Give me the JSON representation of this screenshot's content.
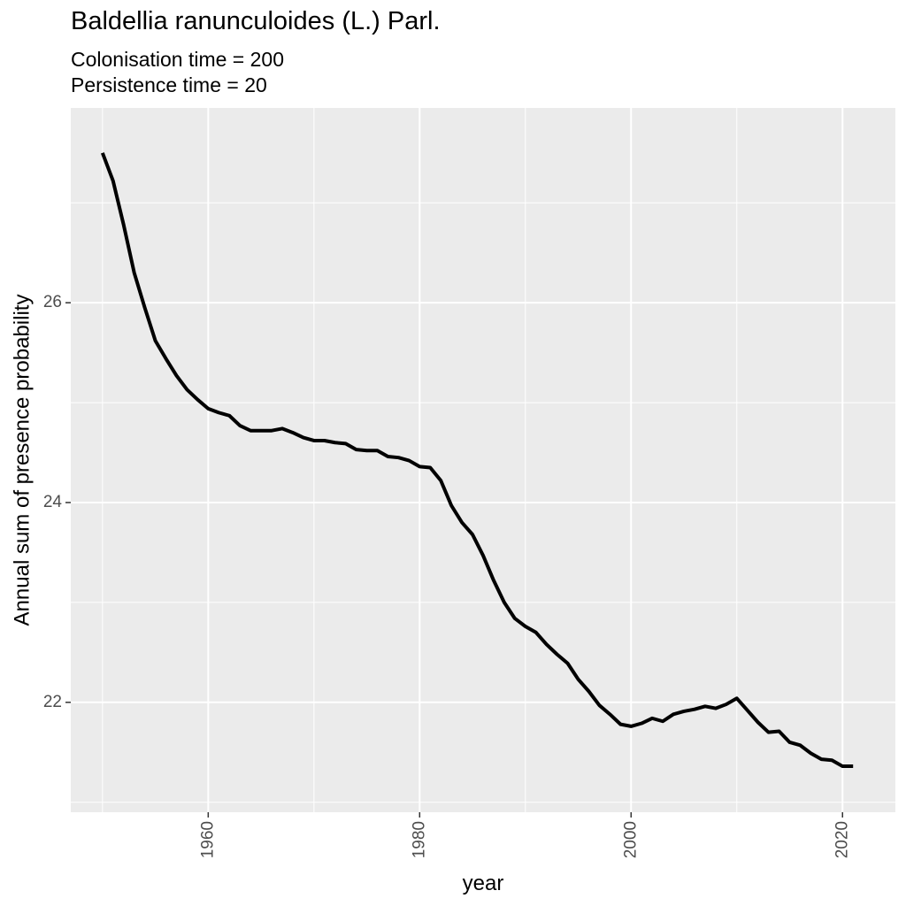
{
  "chart_data": {
    "type": "line",
    "title": "Baldellia ranunculoides (L.) Parl.",
    "subtitle": [
      "Colonisation time = 200",
      "Persistence time = 20"
    ],
    "xlabel": "year",
    "ylabel": "Annual sum of presence probability",
    "xlim": [
      1947,
      2025
    ],
    "ylim": [
      20.9,
      27.95
    ],
    "xticks": [
      1960,
      1980,
      2000,
      2020
    ],
    "yticks": [
      22,
      24,
      26
    ],
    "grid": true,
    "colors": {
      "panel": "#ebebeb",
      "grid": "#ffffff",
      "line": "#000000"
    },
    "series": [
      {
        "x": [
          1950,
          1951,
          1952,
          1953,
          1954,
          1955,
          1956,
          1957,
          1958,
          1959,
          1960,
          1961,
          1962,
          1963,
          1964,
          1965,
          1966,
          1967,
          1968,
          1969,
          1970,
          1971,
          1972,
          1973,
          1974,
          1975,
          1976,
          1977,
          1978,
          1979,
          1980,
          1981,
          1982,
          1983,
          1984,
          1985,
          1986,
          1987,
          1988,
          1989,
          1990,
          1991,
          1992,
          1993,
          1994,
          1995,
          1996,
          1997,
          1998,
          1999,
          2000,
          2001,
          2002,
          2003,
          2004,
          2005,
          2006,
          2007,
          2008,
          2009,
          2010,
          2011,
          2012,
          2013,
          2014,
          2015,
          2016,
          2017,
          2018,
          2019,
          2020,
          2021
        ],
        "y": [
          27.5,
          27.22,
          26.78,
          26.3,
          25.95,
          25.62,
          25.44,
          25.27,
          25.13,
          25.03,
          24.94,
          24.9,
          24.87,
          24.77,
          24.72,
          24.72,
          24.72,
          24.74,
          24.7,
          24.65,
          24.62,
          24.62,
          24.6,
          24.59,
          24.53,
          24.52,
          24.52,
          24.46,
          24.45,
          24.42,
          24.36,
          24.35,
          24.22,
          23.97,
          23.8,
          23.68,
          23.47,
          23.22,
          23.0,
          22.84,
          22.76,
          22.7,
          22.58,
          22.48,
          22.39,
          22.23,
          22.11,
          21.97,
          21.88,
          21.78,
          21.76,
          21.79,
          21.84,
          21.81,
          21.88,
          21.91,
          21.93,
          21.96,
          21.94,
          21.98,
          22.04,
          21.92,
          21.8,
          21.7,
          21.71,
          21.6,
          21.57,
          21.49,
          21.43,
          21.42,
          21.36,
          21.36
        ]
      }
    ]
  }
}
